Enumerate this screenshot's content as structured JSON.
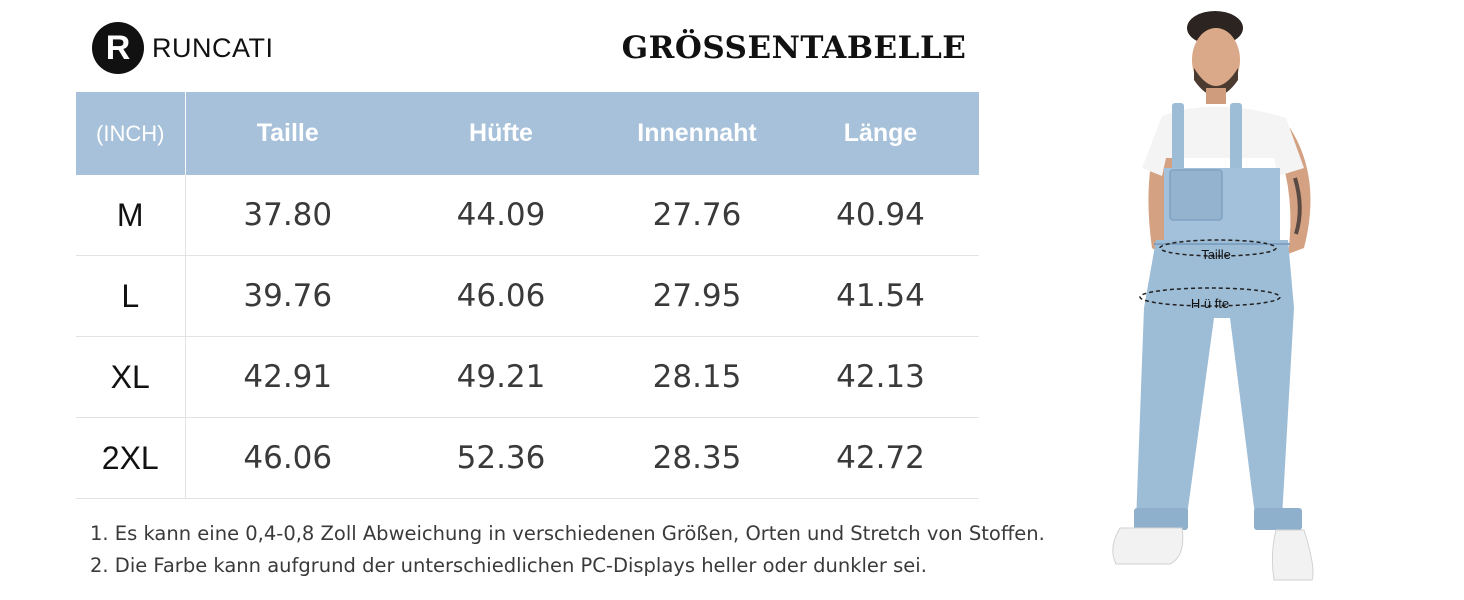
{
  "brand": {
    "logo_letter": "R",
    "name": "RUNCATI"
  },
  "title": "GRÖSSENTABELLE",
  "table": {
    "headers": [
      "(INCH)",
      "Taille",
      "Hüfte",
      "Innennaht",
      "Länge"
    ],
    "rows": [
      [
        "M",
        "37.80",
        "44.09",
        "27.76",
        "40.94"
      ],
      [
        "L",
        "39.76",
        "46.06",
        "27.95",
        "41.54"
      ],
      [
        "XL",
        "42.91",
        "49.21",
        "28.15",
        "42.13"
      ],
      [
        "2XL",
        "46.06",
        "52.36",
        "28.35",
        "42.72"
      ]
    ]
  },
  "notes": [
    "1. Es kann eine 0,4-0,8 Zoll Abweichung in verschiedenen Größen, Orten und Stretch von Stoffen.",
    "2. Die Farbe kann aufgrund der unterschiedlichen PC-Displays heller oder dunkler sei."
  ],
  "figure": {
    "waist_label": "Taille",
    "hip_label": "H ü fte"
  },
  "colors": {
    "header_bg": "#a6c1d9",
    "denim": "#9dbcd6",
    "denim_dark": "#7fa2c2"
  }
}
